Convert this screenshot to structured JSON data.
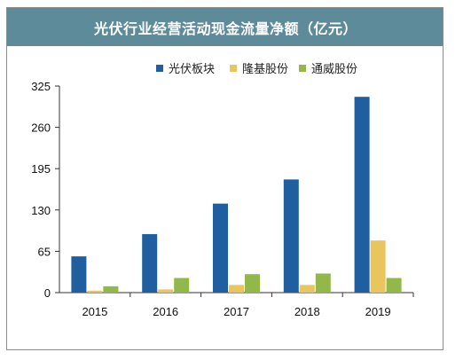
{
  "title": "光伏行业经营活动现金流量净额（亿元）",
  "colors": {
    "title_bg": "#5e8b9a",
    "s1": "#1f5fa0",
    "s2": "#e9c55d",
    "s3": "#92b84a"
  },
  "chart_data": {
    "type": "bar",
    "title": "光伏行业经营活动现金流量净额（亿元）",
    "xlabel": "",
    "ylabel": "",
    "categories": [
      "2015",
      "2016",
      "2017",
      "2018",
      "2019"
    ],
    "series": [
      {
        "name": "光伏板块",
        "values": [
          57,
          92,
          140,
          178,
          308
        ],
        "color": "#1f5fa0"
      },
      {
        "name": "隆基股份",
        "values": [
          3,
          5,
          12,
          12,
          82
        ],
        "color": "#e9c55d"
      },
      {
        "name": "通威股份",
        "values": [
          10,
          23,
          29,
          30,
          23
        ],
        "color": "#92b84a"
      }
    ],
    "ylim": [
      0,
      325
    ],
    "yticks": [
      "0",
      "65",
      "130",
      "195",
      "260",
      "325"
    ],
    "grid": false,
    "legend": "top"
  }
}
